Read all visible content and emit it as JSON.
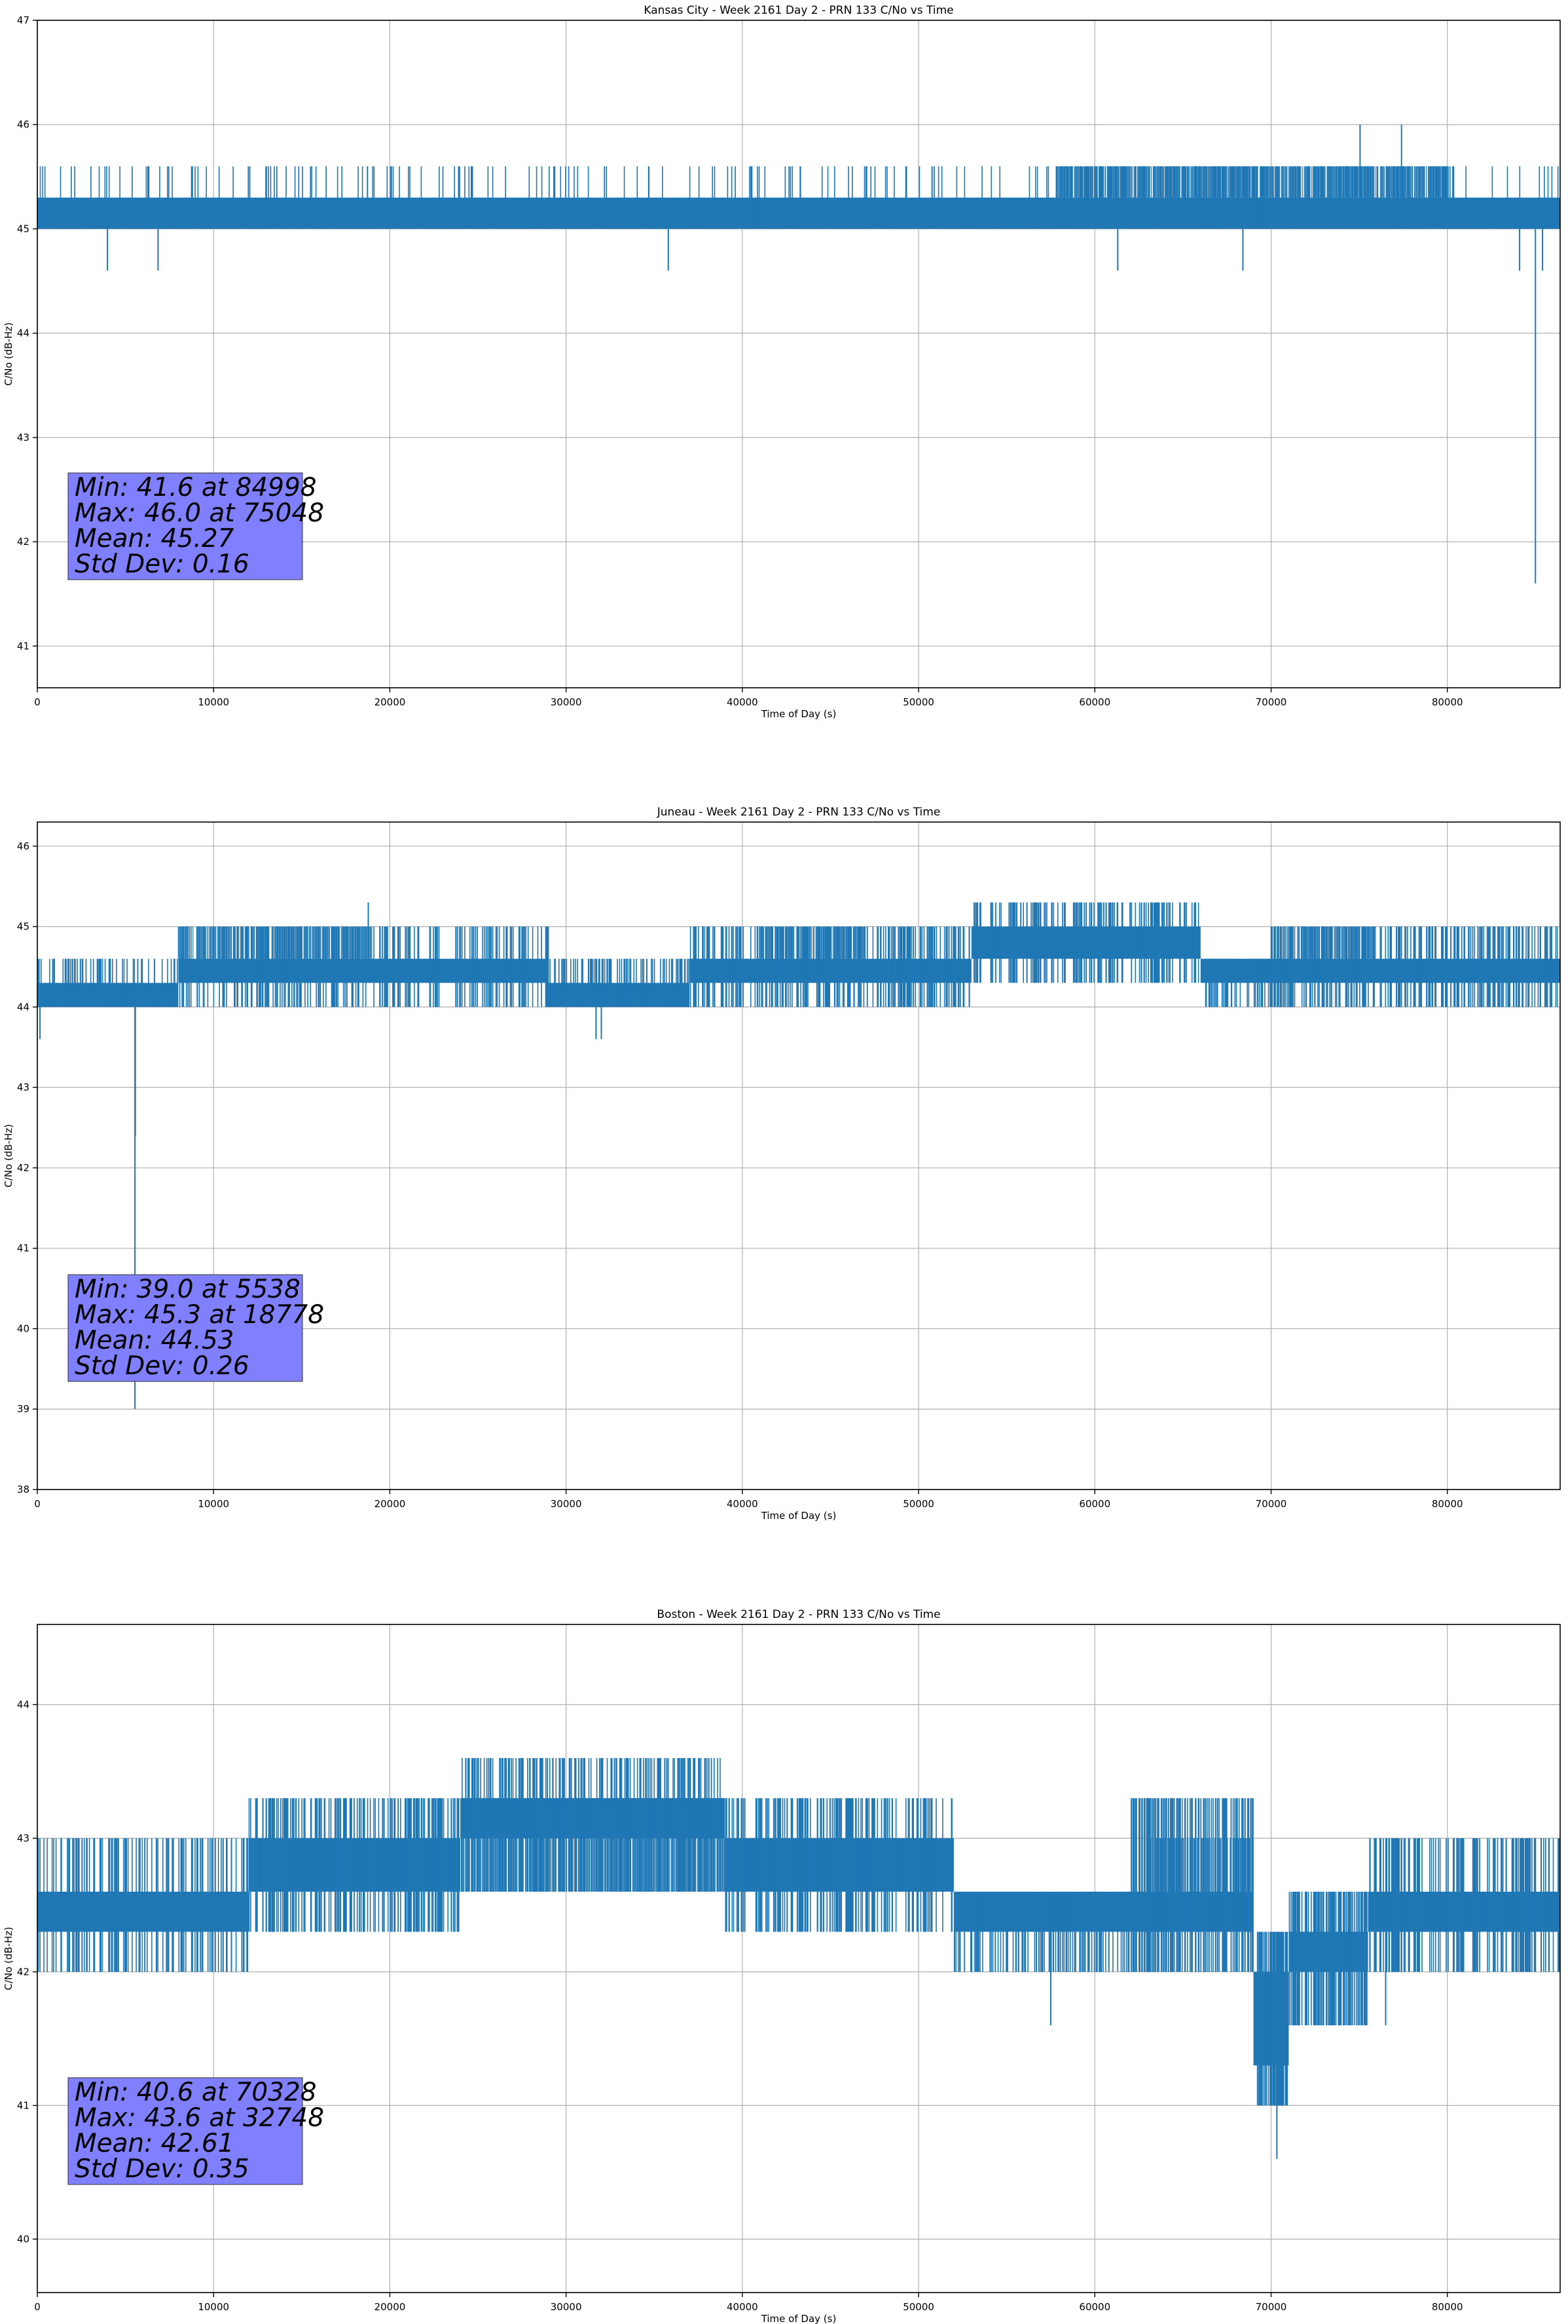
{
  "style": {
    "line_color": "#1f77b4",
    "grid_color": "#b0b0b0",
    "stats_box_fill": "#8080ff",
    "axis_color": "#000000"
  },
  "chart_data": [
    {
      "type": "line",
      "title": "Kansas City - Week 2161 Day 2 - PRN 133 C/No vs Time",
      "xlabel": "Time of Day (s)",
      "ylabel": "C/No (dB-Hz)",
      "xlim": [
        0,
        86400
      ],
      "ylim": [
        40.6,
        47.0
      ],
      "xticks": [
        0,
        10000,
        20000,
        30000,
        40000,
        50000,
        60000,
        70000,
        80000
      ],
      "yticks": [
        41,
        42,
        43,
        44,
        45,
        46,
        47
      ],
      "grid": true,
      "series": [
        {
          "band_segments": [
            [
              0,
              86400,
              45.0,
              45.3
            ]
          ],
          "spike_segments": [
            [
              0,
              86400,
              45.0,
              45.6,
              230
            ],
            [
              58000,
              80000,
              45.3,
              45.6,
              260
            ]
          ],
          "dense_segments": [
            [
              57800,
              80100,
              45.3,
              45.6
            ]
          ],
          "spikes": [
            [
              3980,
              44.6
            ],
            [
              6850,
              44.6
            ],
            [
              35800,
              44.6
            ],
            [
              61300,
              44.6
            ],
            [
              68400,
              44.6
            ],
            [
              84100,
              44.6
            ],
            [
              85400,
              44.6
            ],
            [
              75048,
              46.0
            ],
            [
              77400,
              46.0
            ],
            [
              84998,
              41.6
            ]
          ]
        }
      ],
      "stats": [
        "Min: 41.6 at 84998",
        "Max: 46.0 at 75048",
        "Mean: 45.27",
        "Std Dev: 0.16"
      ]
    },
    {
      "type": "line",
      "title": "Juneau - Week 2161 Day 2 - PRN 133 C/No vs Time",
      "xlabel": "Time of Day (s)",
      "ylabel": "C/No (dB-Hz)",
      "xlim": [
        0,
        86400
      ],
      "ylim": [
        38.0,
        46.3
      ],
      "xticks": [
        0,
        10000,
        20000,
        30000,
        40000,
        50000,
        60000,
        70000,
        80000
      ],
      "yticks": [
        38,
        39,
        40,
        41,
        42,
        43,
        44,
        45,
        46
      ],
      "grid": true,
      "series": [
        {
          "band_segments": [
            [
              0,
              8000,
              44.0,
              44.3
            ],
            [
              8000,
              29000,
              44.3,
              44.6
            ],
            [
              29000,
              37000,
              44.0,
              44.3
            ],
            [
              37000,
              53000,
              44.3,
              44.6
            ],
            [
              53000,
              66000,
              44.6,
              45.0
            ],
            [
              66000,
              70000,
              44.3,
              44.6
            ],
            [
              70000,
              86400,
              44.3,
              44.6
            ]
          ],
          "spike_segments": [
            [
              0,
              8000,
              44.0,
              44.6,
              60
            ],
            [
              8000,
              29000,
              44.0,
              45.0,
              200
            ],
            [
              29000,
              37000,
              44.0,
              44.6,
              80
            ],
            [
              37000,
              53000,
              44.0,
              45.0,
              200
            ],
            [
              53000,
              66000,
              44.3,
              45.3,
              140
            ],
            [
              66000,
              70000,
              44.0,
              44.6,
              40
            ],
            [
              70000,
              86400,
              44.0,
              45.0,
              200
            ]
          ],
          "dense_segments": [
            [
              8000,
              19000,
              44.6,
              45.0
            ],
            [
              41000,
              47000,
              44.6,
              45.0
            ],
            [
              71500,
              76000,
              44.6,
              45.0
            ]
          ],
          "spikes": [
            [
              150,
              43.6
            ],
            [
              5538,
              39.0
            ],
            [
              5560,
              42.4
            ],
            [
              18778,
              45.3
            ],
            [
              31700,
              43.6
            ],
            [
              32000,
              43.6
            ],
            [
              55800,
              45.3
            ],
            [
              60500,
              45.3
            ],
            [
              62000,
              45.3
            ]
          ]
        }
      ],
      "stats": [
        "Min: 39.0 at 5538",
        "Max: 45.3 at 18778",
        "Mean: 44.53",
        "Std Dev: 0.26"
      ]
    },
    {
      "type": "line",
      "title": "Boston - Week 2161 Day 2 - PRN 133 C/No vs Time",
      "xlabel": "Time of Day (s)",
      "ylabel": "C/No (dB-Hz)",
      "xlim": [
        0,
        86400
      ],
      "ylim": [
        39.6,
        44.6
      ],
      "xticks": [
        0,
        10000,
        20000,
        30000,
        40000,
        50000,
        60000,
        70000,
        80000
      ],
      "yticks": [
        40,
        41,
        42,
        43,
        44
      ],
      "grid": true,
      "series": [
        {
          "band_segments": [
            [
              0,
              12000,
              42.3,
              42.6
            ],
            [
              12000,
              24000,
              42.6,
              43.0
            ],
            [
              24000,
              39000,
              43.0,
              43.3
            ],
            [
              39000,
              52000,
              42.6,
              43.0
            ],
            [
              52000,
              69000,
              42.3,
              42.6
            ],
            [
              69000,
              71000,
              41.3,
              42.0
            ],
            [
              71000,
              75500,
              42.0,
              42.3
            ],
            [
              75500,
              86400,
              42.3,
              42.6
            ]
          ],
          "spike_segments": [
            [
              0,
              12000,
              42.0,
              43.0,
              110
            ],
            [
              12000,
              24000,
              42.3,
              43.3,
              160
            ],
            [
              24000,
              39000,
              42.6,
              43.6,
              180
            ],
            [
              39000,
              52000,
              42.3,
              43.3,
              160
            ],
            [
              52000,
              62000,
              42.0,
              42.6,
              110
            ],
            [
              62000,
              69000,
              42.0,
              43.3,
              120
            ],
            [
              69000,
              71000,
              41.0,
              42.3,
              50
            ],
            [
              71000,
              75500,
              41.6,
              42.6,
              90
            ],
            [
              75500,
              86400,
              42.0,
              43.0,
              140
            ]
          ],
          "dense_segments": [
            [
              12000,
              23000,
              42.6,
              43.0
            ],
            [
              24000,
              39000,
              42.6,
              43.3
            ],
            [
              40000,
              51000,
              42.6,
              43.0
            ],
            [
              63000,
              69000,
              42.3,
              43.0
            ],
            [
              69200,
              70900,
              41.3,
              42.0
            ],
            [
              76000,
              86400,
              42.3,
              42.6
            ]
          ],
          "spikes": [
            [
              32748,
              43.6
            ],
            [
              35600,
              43.6
            ],
            [
              38100,
              43.6
            ],
            [
              57500,
              41.6
            ],
            [
              69400,
              41.0
            ],
            [
              70328,
              40.6
            ],
            [
              70600,
              41.0
            ],
            [
              76500,
              41.6
            ],
            [
              22500,
              43.3
            ]
          ]
        }
      ],
      "stats": [
        "Min: 40.6 at 70328",
        "Max: 43.6 at 32748",
        "Mean: 42.61",
        "Std Dev: 0.35"
      ]
    }
  ]
}
